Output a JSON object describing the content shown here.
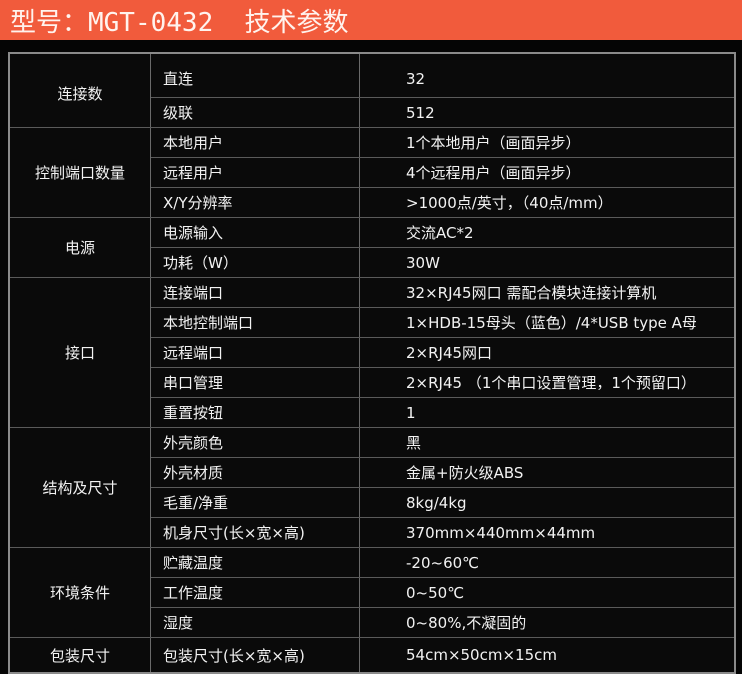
{
  "header": {
    "title": "型号：MGT-0432  技术参数"
  },
  "groups": [
    {
      "label": "连接数",
      "rows": [
        [
          "直连",
          "32"
        ],
        [
          "级联",
          "512"
        ]
      ]
    },
    {
      "label": "控制端口数量",
      "rows": [
        [
          "本地用户",
          "1个本地用户（画面异步）"
        ],
        [
          "远程用户",
          "4个远程用户（画面异步）"
        ],
        [
          "X/Y分辨率",
          ">1000点/英寸，（40点/mm）"
        ]
      ]
    },
    {
      "label": "电源",
      "rows": [
        [
          "电源输入",
          "交流AC*2"
        ],
        [
          "功耗（W）",
          "30W"
        ]
      ]
    },
    {
      "label": "接口",
      "rows": [
        [
          "连接端口",
          "32×RJ45网口  需配合模块连接计算机"
        ],
        [
          "本地控制端口",
          "1×HDB-15母头（蓝色）/4*USB type A母"
        ],
        [
          "远程端口",
          "2×RJ45网口"
        ],
        [
          "串口管理",
          "2×RJ45 （1个串口设置管理，1个预留口）"
        ],
        [
          "重置按钮",
          "1"
        ]
      ]
    },
    {
      "label": "结构及尺寸",
      "rows": [
        [
          "外壳颜色",
          "黑"
        ],
        [
          "外壳材质",
          "金属+防火级ABS"
        ],
        [
          "毛重/净重",
          "8kg/4kg"
        ],
        [
          "机身尺寸(长×宽×高)",
          "370mm×440mm×44mm"
        ]
      ]
    },
    {
      "label": "环境条件",
      "rows": [
        [
          "贮藏温度",
          "-20~60℃"
        ],
        [
          "工作温度",
          "0~50℃"
        ],
        [
          "湿度",
          "0~80%,不凝固的"
        ]
      ]
    },
    {
      "label": "包装尺寸",
      "rows": [
        [
          "包装尺寸(长×宽×高)",
          "54cm×50cm×15cm"
        ]
      ]
    }
  ]
}
